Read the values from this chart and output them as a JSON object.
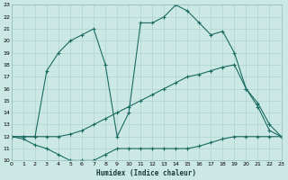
{
  "xlabel": "Humidex (Indice chaleur)",
  "bg_color": "#cce8e5",
  "grid_color": "#b0d4d0",
  "line_color": "#1a6b62",
  "xlim": [
    0,
    23
  ],
  "ylim": [
    10,
    23
  ],
  "line_top_x": [
    0,
    1,
    2,
    3,
    4,
    5,
    6,
    7,
    8,
    9,
    10,
    11,
    12,
    13,
    14,
    15,
    16,
    17,
    18,
    19,
    20,
    21,
    22,
    23
  ],
  "line_top_y": [
    12,
    12,
    12,
    17.5,
    19,
    20,
    20.5,
    21,
    18,
    12,
    14,
    21.5,
    21.5,
    22,
    23,
    22.5,
    21.5,
    20.5,
    20.8,
    19,
    16,
    14.8,
    13,
    12
  ],
  "line_mid_x": [
    0,
    1,
    2,
    3,
    4,
    5,
    6,
    7,
    8,
    9,
    10,
    11,
    12,
    13,
    14,
    15,
    16,
    17,
    18,
    19,
    20,
    21,
    22,
    23
  ],
  "line_mid_y": [
    12,
    12,
    12,
    12,
    12,
    12.2,
    12.5,
    13,
    13.5,
    14,
    14.5,
    15,
    15.5,
    16,
    16.5,
    17,
    17.2,
    17.5,
    17.8,
    18,
    16,
    14.5,
    12.5,
    12
  ],
  "line_bot_x": [
    0,
    1,
    2,
    3,
    4,
    5,
    6,
    7,
    8,
    9,
    10,
    11,
    12,
    13,
    14,
    15,
    16,
    17,
    18,
    19,
    20,
    21,
    22,
    23
  ],
  "line_bot_y": [
    12,
    11.8,
    11.3,
    11.0,
    10.5,
    10.0,
    10.0,
    10.0,
    10.5,
    11.0,
    11.0,
    11.0,
    11.0,
    11.0,
    11.0,
    11.0,
    11.2,
    11.5,
    11.8,
    12.0,
    12.0,
    12.0,
    12.0,
    12.0
  ]
}
